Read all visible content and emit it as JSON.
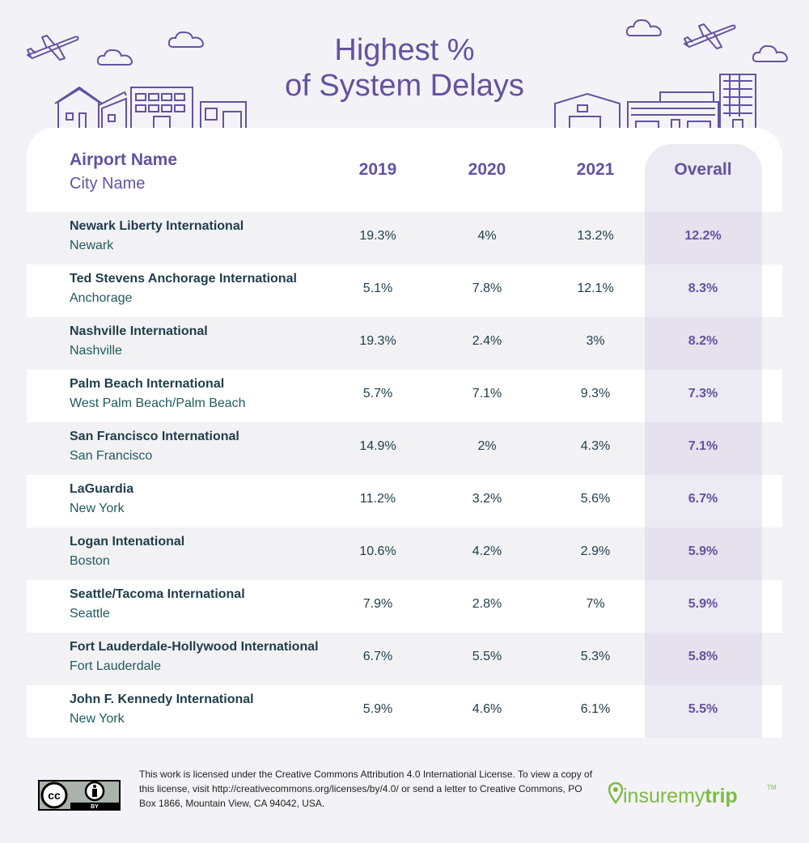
{
  "title": {
    "line1": "Highest %",
    "line2": "of System Delays"
  },
  "colors": {
    "accent": "#64529f",
    "ink": "#1f3d4a",
    "teal": "#1f5a5e",
    "logo_green": "#7dbb42"
  },
  "chart_data": {
    "type": "table",
    "title": "Highest % of System Delays",
    "columns": {
      "airport": "Airport Name",
      "city": "City Name",
      "y2019": "2019",
      "y2020": "2020",
      "y2021": "2021",
      "overall": "Overall"
    },
    "rows": [
      {
        "airport": "Newark Liberty International",
        "city": "Newark",
        "y2019": "19.3%",
        "y2020": "4%",
        "y2021": "13.2%",
        "overall": "12.2%"
      },
      {
        "airport": "Ted Stevens Anchorage International",
        "city": "Anchorage",
        "y2019": "5.1%",
        "y2020": "7.8%",
        "y2021": "12.1%",
        "overall": "8.3%"
      },
      {
        "airport": "Nashville International",
        "city": "Nashville",
        "y2019": "19.3%",
        "y2020": "2.4%",
        "y2021": "3%",
        "overall": "8.2%"
      },
      {
        "airport": "Palm Beach International",
        "city": "West Palm Beach/Palm Beach",
        "y2019": "5.7%",
        "y2020": "7.1%",
        "y2021": "9.3%",
        "overall": "7.3%"
      },
      {
        "airport": "San Francisco International",
        "city": "San Francisco",
        "y2019": "14.9%",
        "y2020": "2%",
        "y2021": "4.3%",
        "overall": "7.1%"
      },
      {
        "airport": "LaGuardia",
        "city": "New York",
        "y2019": "11.2%",
        "y2020": "3.2%",
        "y2021": "5.6%",
        "overall": "6.7%"
      },
      {
        "airport": "Logan Intenational",
        "city": "Boston",
        "y2019": "10.6%",
        "y2020": "4.2%",
        "y2021": "2.9%",
        "overall": "5.9%"
      },
      {
        "airport": "Seattle/Tacoma International",
        "city": "Seattle",
        "y2019": "7.9%",
        "y2020": "2.8%",
        "y2021": "7%",
        "overall": "5.9%"
      },
      {
        "airport": "Fort Lauderdale-Hollywood International",
        "city": "Fort Lauderdale",
        "y2019": "6.7%",
        "y2020": "5.5%",
        "y2021": "5.3%",
        "overall": "5.8%"
      },
      {
        "airport": "John F. Kennedy International",
        "city": "New York",
        "y2019": "5.9%",
        "y2020": "4.6%",
        "y2021": "6.1%",
        "overall": "5.5%"
      }
    ]
  },
  "footer": {
    "license_text": "This work is licensed under the Creative Commons Attribution 4.0 International License. To view a copy of this license, visit http://creativecommons.org/licenses/by/4.0/ or send a letter to Creative Commons, PO Box 1866, Mountain View, CA 94042, USA.",
    "cc_badge": {
      "cc": "cc",
      "by": "BY"
    },
    "brand": {
      "part1": "insuremy",
      "part2": "trip",
      "tm": "TM"
    }
  }
}
